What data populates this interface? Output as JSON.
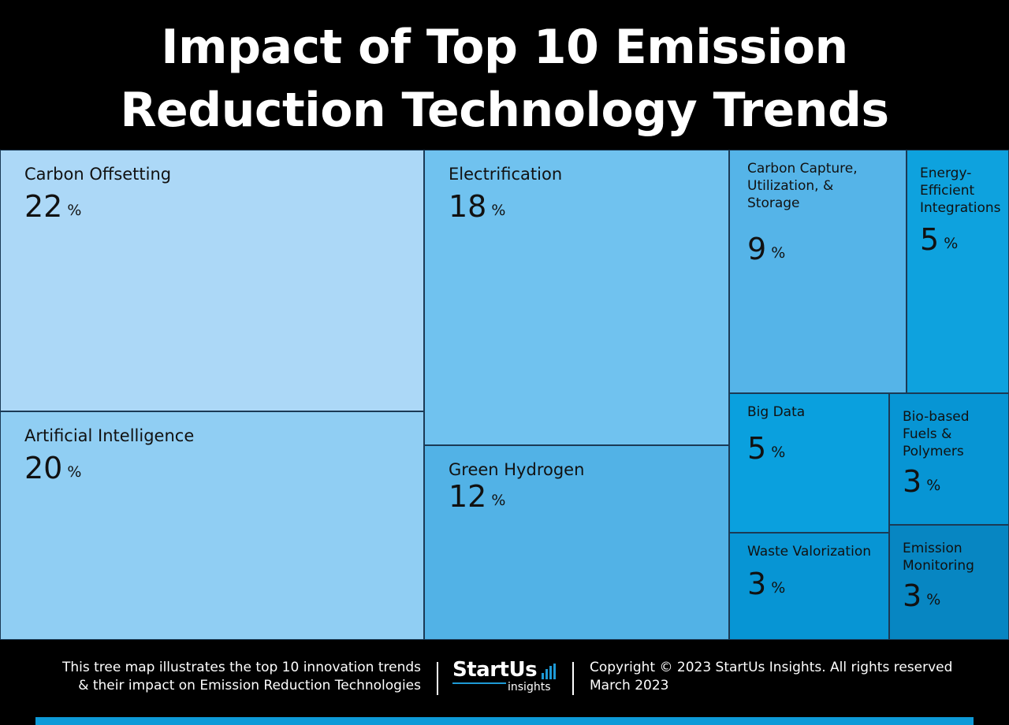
{
  "title": {
    "line1": "Impact of Top 10 Emission",
    "line2": "Reduction Technology Trends"
  },
  "chart_data": {
    "type": "treemap",
    "unit": "%",
    "items": [
      {
        "label": "Carbon Offsetting",
        "value": 22,
        "color": "#acd8f7"
      },
      {
        "label": "Artificial Intelligence",
        "value": 20,
        "color": "#90cef3"
      },
      {
        "label": "Electrification",
        "value": 18,
        "color": "#70c2ef"
      },
      {
        "label": "Green Hydrogen",
        "value": 12,
        "color": "#52b2e6"
      },
      {
        "label": "Carbon Capture, Utilization, & Storage",
        "value": 9,
        "color": "#55b4e8"
      },
      {
        "label": "Energy-Efficient Integrations",
        "value": 5,
        "color": "#0ea2de"
      },
      {
        "label": "Big Data",
        "value": 5,
        "color": "#0aa0de"
      },
      {
        "label": "Bio-based Fuels & Polymers",
        "value": 3,
        "color": "#0795d4"
      },
      {
        "label": "Waste Valorization",
        "value": 3,
        "color": "#0795d4"
      },
      {
        "label": "Emission Monitoring",
        "value": 3,
        "color": "#0786c2"
      }
    ]
  },
  "footer": {
    "description_line1": "This tree map illustrates the top 10 innovation trends",
    "description_line2": "& their impact on Emission Reduction Technologies",
    "logo_main": "StartUs",
    "logo_sub": "insights",
    "copyright": "Copyright © 2023 StartUs Insights. All rights reserved",
    "date": "March 2023"
  },
  "colors": {
    "background": "#000000",
    "tile_border": "#1b3a55",
    "accent_bar": "#0d9ad8"
  }
}
